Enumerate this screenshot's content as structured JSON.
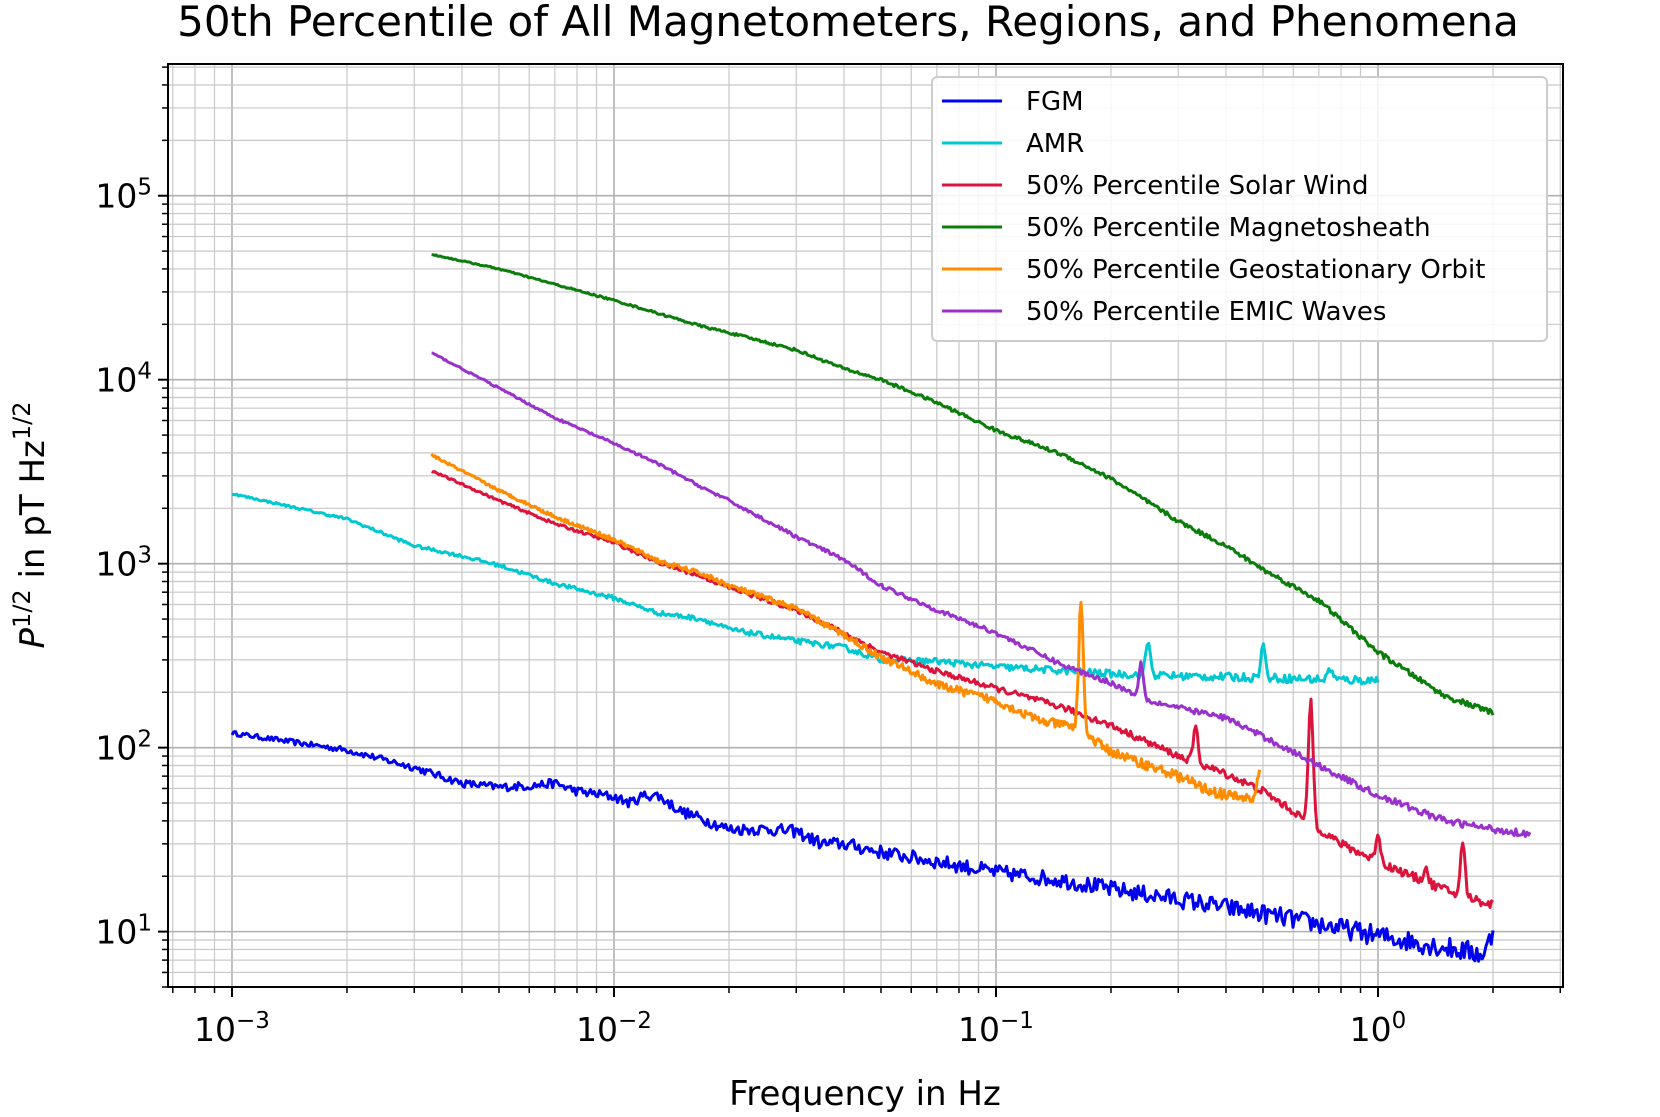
{
  "chart_data": {
    "type": "line",
    "title": "50th Percentile of All Magnetometers, Regions, and Phenomena",
    "xlabel": "Frequency in Hz",
    "ylabel_main": "P",
    "ylabel_sup1": "1/2",
    "ylabel_mid": " in pT Hz",
    "ylabel_sup2": "1/2",
    "xscale": "log",
    "yscale": "log",
    "xlim": [
      0.00068,
      3.05
    ],
    "ylim": [
      5.0,
      520000
    ],
    "grid": "both (major and minor)",
    "legend_position": "top-right",
    "x_ticks": [
      {
        "base": "10",
        "exp": "−3",
        "value": 0.001
      },
      {
        "base": "10",
        "exp": "−2",
        "value": 0.01
      },
      {
        "base": "10",
        "exp": "−1",
        "value": 0.1
      },
      {
        "base": "10",
        "exp": "0",
        "value": 1
      }
    ],
    "y_ticks": [
      {
        "base": "10",
        "exp": "1",
        "value": 10
      },
      {
        "base": "10",
        "exp": "2",
        "value": 100
      },
      {
        "base": "10",
        "exp": "3",
        "value": 1000
      },
      {
        "base": "10",
        "exp": "4",
        "value": 10000
      },
      {
        "base": "10",
        "exp": "5",
        "value": 100000
      }
    ],
    "series": [
      {
        "name": "FGM",
        "color": "#0000ee",
        "noise": 0.12,
        "points": [
          [
            0.001,
            120
          ],
          [
            0.002,
            97
          ],
          [
            0.003,
            78
          ],
          [
            0.004,
            64
          ],
          [
            0.005,
            61
          ],
          [
            0.006,
            62
          ],
          [
            0.007,
            64
          ],
          [
            0.008,
            58
          ],
          [
            0.01,
            54
          ],
          [
            0.011,
            50
          ],
          [
            0.012,
            55
          ],
          [
            0.013,
            55
          ],
          [
            0.015,
            45
          ],
          [
            0.017,
            41
          ],
          [
            0.02,
            36
          ],
          [
            0.025,
            36
          ],
          [
            0.03,
            35
          ],
          [
            0.035,
            30
          ],
          [
            0.04,
            30
          ],
          [
            0.05,
            27
          ],
          [
            0.07,
            24
          ],
          [
            0.1,
            21
          ],
          [
            0.15,
            19
          ],
          [
            0.2,
            17
          ],
          [
            0.3,
            15
          ],
          [
            0.5,
            12.5
          ],
          [
            0.7,
            11
          ],
          [
            1.0,
            9.5
          ],
          [
            1.5,
            8.2
          ],
          [
            1.9,
            7.5
          ],
          [
            2.0,
            10
          ]
        ]
      },
      {
        "name": "AMR",
        "color": "#00c8d0",
        "noise": 0.05,
        "points": [
          [
            0.001,
            2400
          ],
          [
            0.002,
            1750
          ],
          [
            0.003,
            1250
          ],
          [
            0.004,
            1100
          ],
          [
            0.005,
            980
          ],
          [
            0.007,
            780
          ],
          [
            0.01,
            650
          ],
          [
            0.013,
            540
          ],
          [
            0.017,
            500
          ],
          [
            0.02,
            440
          ],
          [
            0.03,
            380
          ],
          [
            0.04,
            350
          ],
          [
            0.05,
            300
          ],
          [
            0.07,
            295
          ],
          [
            0.1,
            275
          ],
          [
            0.15,
            262
          ],
          [
            0.2,
            252
          ],
          [
            0.3,
            245
          ],
          [
            0.5,
            240
          ],
          [
            0.7,
            235
          ],
          [
            1.0,
            232
          ]
        ],
        "spikes": [
          [
            0.25,
            380
          ],
          [
            0.5,
            360
          ],
          [
            0.75,
            270
          ]
        ]
      },
      {
        "name": "50% Percentile Solar Wind",
        "color": "#dc143c",
        "noise": 0.05,
        "points": [
          [
            0.00333,
            3200
          ],
          [
            0.005,
            2200
          ],
          [
            0.007,
            1650
          ],
          [
            0.01,
            1300
          ],
          [
            0.0133,
            1000
          ],
          [
            0.017,
            850
          ],
          [
            0.02,
            740
          ],
          [
            0.03,
            560
          ],
          [
            0.04,
            420
          ],
          [
            0.05,
            330
          ],
          [
            0.07,
            260
          ],
          [
            0.1,
            210
          ],
          [
            0.15,
            165
          ],
          [
            0.2,
            132
          ],
          [
            0.3,
            90
          ],
          [
            0.4,
            72
          ],
          [
            0.5,
            58
          ],
          [
            0.6,
            45
          ],
          [
            0.8,
            30
          ],
          [
            1.0,
            24
          ],
          [
            1.3,
            19
          ],
          [
            1.6,
            16
          ],
          [
            2.0,
            14
          ]
        ],
        "spikes": [
          [
            0.333,
            130
          ],
          [
            0.667,
            185
          ],
          [
            1.0,
            34
          ],
          [
            1.333,
            22
          ],
          [
            1.667,
            30
          ]
        ]
      },
      {
        "name": "50% Percentile Magnetosheath",
        "color": "#0b7d0b",
        "noise": 0.03,
        "points": [
          [
            0.00333,
            48000
          ],
          [
            0.005,
            40000
          ],
          [
            0.007,
            33000
          ],
          [
            0.01,
            27000
          ],
          [
            0.013,
            23000
          ],
          [
            0.017,
            19500
          ],
          [
            0.02,
            18000
          ],
          [
            0.03,
            14500
          ],
          [
            0.04,
            11500
          ],
          [
            0.05,
            10000
          ],
          [
            0.07,
            7500
          ],
          [
            0.1,
            5300
          ],
          [
            0.15,
            3900
          ],
          [
            0.2,
            2900
          ],
          [
            0.3,
            1700
          ],
          [
            0.4,
            1250
          ],
          [
            0.5,
            930
          ],
          [
            0.7,
            630
          ],
          [
            1.0,
            330
          ],
          [
            1.5,
            190
          ],
          [
            2.0,
            155
          ]
        ]
      },
      {
        "name": "50% Percentile Geostationary Orbit",
        "color": "#ff8c00",
        "noise": 0.06,
        "points": [
          [
            0.00333,
            3900
          ],
          [
            0.005,
            2500
          ],
          [
            0.007,
            1800
          ],
          [
            0.01,
            1350
          ],
          [
            0.0133,
            1020
          ],
          [
            0.017,
            880
          ],
          [
            0.02,
            760
          ],
          [
            0.03,
            570
          ],
          [
            0.04,
            410
          ],
          [
            0.05,
            310
          ],
          [
            0.06,
            260
          ],
          [
            0.07,
            220
          ],
          [
            0.1,
            180
          ],
          [
            0.13,
            140
          ],
          [
            0.16,
            130
          ],
          [
            0.2,
            95
          ],
          [
            0.25,
            80
          ],
          [
            0.3,
            70
          ],
          [
            0.35,
            60
          ],
          [
            0.4,
            55
          ],
          [
            0.49,
            52
          ]
        ],
        "spikes": [
          [
            0.167,
            620
          ],
          [
            0.49,
            75
          ]
        ]
      },
      {
        "name": "50% Percentile EMIC Waves",
        "color": "#9932cc",
        "noise": 0.04,
        "points": [
          [
            0.00333,
            14000
          ],
          [
            0.005,
            9000
          ],
          [
            0.007,
            6200
          ],
          [
            0.01,
            4500
          ],
          [
            0.013,
            3500
          ],
          [
            0.017,
            2600
          ],
          [
            0.02,
            2200
          ],
          [
            0.03,
            1400
          ],
          [
            0.04,
            1050
          ],
          [
            0.05,
            760
          ],
          [
            0.07,
            560
          ],
          [
            0.1,
            420
          ],
          [
            0.15,
            280
          ],
          [
            0.2,
            225
          ],
          [
            0.25,
            180
          ],
          [
            0.3,
            165
          ],
          [
            0.4,
            145
          ],
          [
            0.5,
            115
          ],
          [
            0.7,
            80
          ],
          [
            1.0,
            55
          ],
          [
            1.5,
            40
          ],
          [
            2.0,
            36
          ],
          [
            2.5,
            34
          ]
        ],
        "spikes": [
          [
            0.24,
            290
          ]
        ]
      }
    ]
  }
}
